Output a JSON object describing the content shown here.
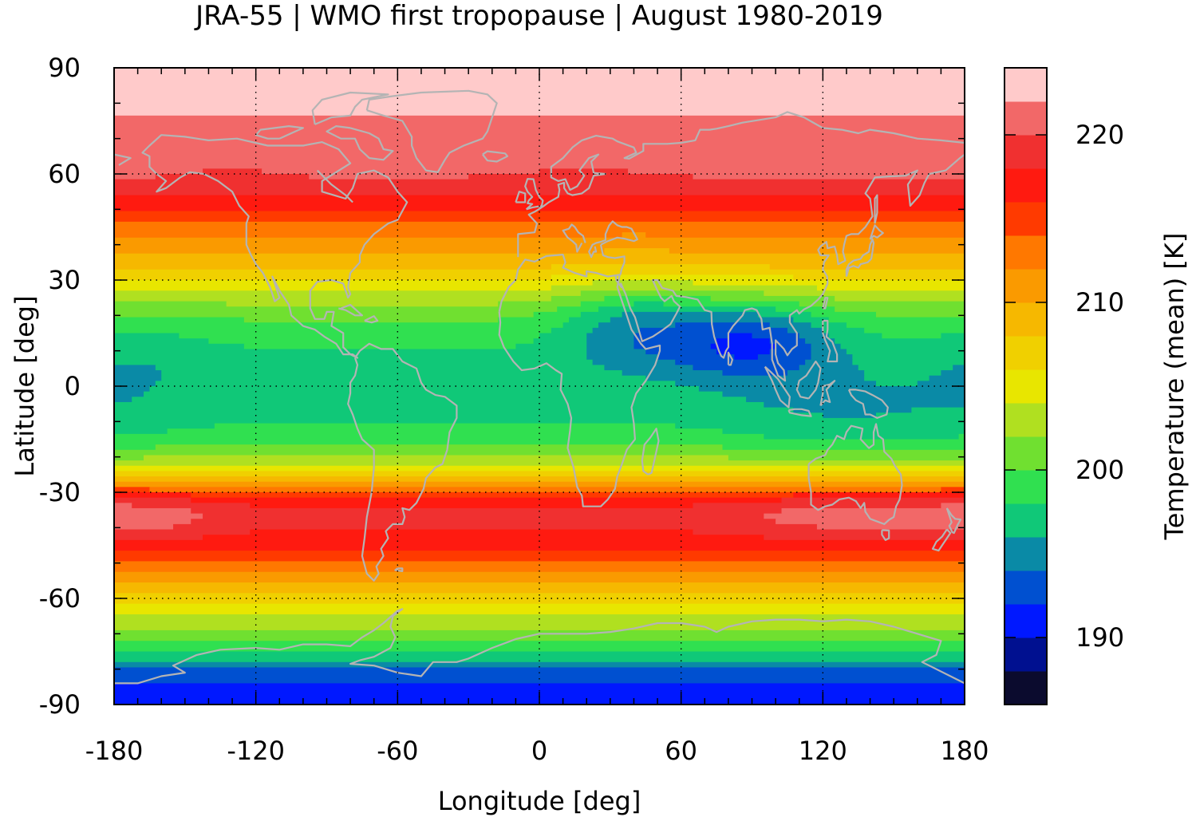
{
  "chart_data": {
    "type": "heatmap",
    "title": "JRA-55 | WMO first tropopause | August 1980-2019",
    "xlabel": "Longitude [deg]",
    "ylabel": "Latitude [deg]",
    "colorbar_label": "Temperature (mean) [K]",
    "xlim": [
      -180,
      180
    ],
    "ylim": [
      -90,
      90
    ],
    "x_ticks": [
      "-180",
      "-120",
      "-60",
      "0",
      "60",
      "120",
      "180"
    ],
    "y_ticks": [
      "90",
      "60",
      "30",
      "0",
      "-30",
      "-60",
      "-90"
    ],
    "colorbar_ticks": [
      "190",
      "200",
      "210",
      "220"
    ],
    "colorbar_range": [
      186,
      224
    ],
    "colorbar_colors": [
      "#0b0b2e",
      "#001090",
      "#0018ff",
      "#0050d0",
      "#0a8aa6",
      "#10c878",
      "#30e050",
      "#70e030",
      "#b0e020",
      "#e8e600",
      "#f0d000",
      "#f6b800",
      "#fa9a00",
      "#ff7800",
      "#ff3a00",
      "#ff1a10",
      "#f03030",
      "#f26868",
      "#ffcaca"
    ],
    "grid": true,
    "coastlines": true,
    "coastline_color": "#b4b4b4",
    "zonal_profile": [
      {
        "lat": 90,
        "value": 223
      },
      {
        "lat": 80,
        "value": 222.5
      },
      {
        "lat": 70,
        "value": 221
      },
      {
        "lat": 60,
        "value": 220.3
      },
      {
        "lat": 55,
        "value": 219
      },
      {
        "lat": 50,
        "value": 216
      },
      {
        "lat": 45,
        "value": 213
      },
      {
        "lat": 40,
        "value": 211
      },
      {
        "lat": 35,
        "value": 209
      },
      {
        "lat": 30,
        "value": 206
      },
      {
        "lat": 25,
        "value": 203
      },
      {
        "lat": 20,
        "value": 200.5
      },
      {
        "lat": 15,
        "value": 199
      },
      {
        "lat": 10,
        "value": 198
      },
      {
        "lat": 5,
        "value": 197.5
      },
      {
        "lat": 0,
        "value": 197.5
      },
      {
        "lat": -5,
        "value": 197.5
      },
      {
        "lat": -10,
        "value": 198
      },
      {
        "lat": -15,
        "value": 199
      },
      {
        "lat": -20,
        "value": 202
      },
      {
        "lat": -25,
        "value": 207
      },
      {
        "lat": -28,
        "value": 212
      },
      {
        "lat": -32,
        "value": 217
      },
      {
        "lat": -36,
        "value": 218.5
      },
      {
        "lat": -40,
        "value": 218
      },
      {
        "lat": -45,
        "value": 217
      },
      {
        "lat": -50,
        "value": 214
      },
      {
        "lat": -55,
        "value": 210
      },
      {
        "lat": -60,
        "value": 207
      },
      {
        "lat": -65,
        "value": 204
      },
      {
        "lat": -70,
        "value": 201
      },
      {
        "lat": -75,
        "value": 198
      },
      {
        "lat": -80,
        "value": 194
      },
      {
        "lat": -85,
        "value": 191
      },
      {
        "lat": -90,
        "value": 190
      }
    ],
    "anomalies": [
      {
        "lon": 90,
        "lat": 13,
        "value": 192
      },
      {
        "lon": 40,
        "lat": 18,
        "value": 195.5
      },
      {
        "lon": 130,
        "lat": -8,
        "value": 196
      },
      {
        "lon": -170,
        "lat": 5,
        "value": 196
      },
      {
        "lon": 100,
        "lat": 62,
        "value": 220.5
      },
      {
        "lon": 20,
        "lat": 62,
        "value": 220
      },
      {
        "lon": -130,
        "lat": 62,
        "value": 220
      },
      {
        "lon": -170,
        "lat": -37,
        "value": 221
      },
      {
        "lon": 130,
        "lat": -37,
        "value": 221
      }
    ]
  }
}
